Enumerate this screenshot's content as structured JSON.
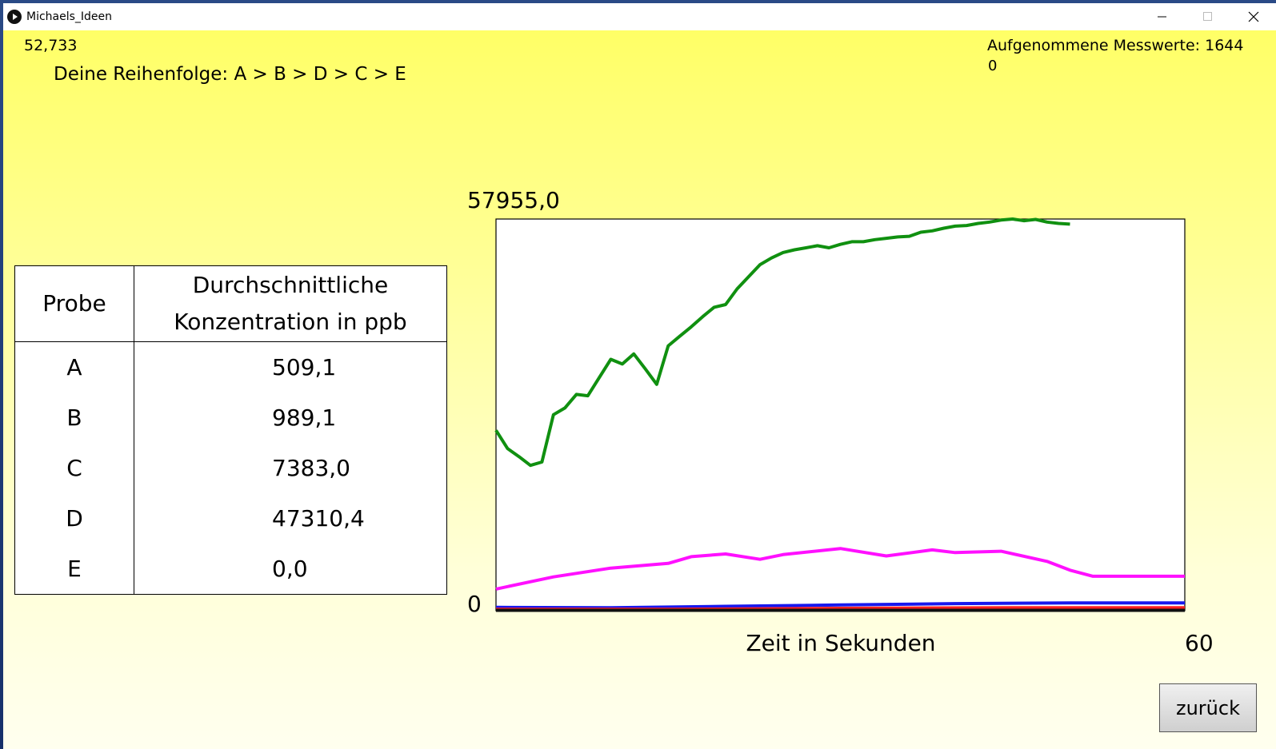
{
  "window": {
    "title": "Michaels_Ideen"
  },
  "header": {
    "timer": "52,733",
    "order": "Deine Reihenfolge: A > B > D > C > E",
    "messwerte_label": "Aufgenommene Messwerte: 1644",
    "messwerte_extra": "0"
  },
  "table": {
    "header_probe": "Probe",
    "header_conc_line1": "Durchschnittliche",
    "header_conc_line2": "Konzentration in ppb",
    "rows": [
      {
        "probe": "A",
        "value": "509,1"
      },
      {
        "probe": "B",
        "value": "989,1"
      },
      {
        "probe": "C",
        "value": "7383,0"
      },
      {
        "probe": "D",
        "value": "47310,4"
      },
      {
        "probe": "E",
        "value": "0,0"
      }
    ]
  },
  "chart_data": {
    "type": "line",
    "y_max_label": "57955,0",
    "y_min_label": "0",
    "x_max_label": "60",
    "xlabel": "Zeit in Sekunden",
    "xlim": [
      0,
      60
    ],
    "ylim": [
      0,
      57955
    ],
    "series": [
      {
        "color": "#109010",
        "points": [
          [
            0,
            26700
          ],
          [
            1,
            24000
          ],
          [
            2,
            22800
          ],
          [
            3,
            21500
          ],
          [
            4,
            22000
          ],
          [
            5,
            29000
          ],
          [
            6,
            30000
          ],
          [
            7,
            32000
          ],
          [
            8,
            31800
          ],
          [
            9,
            34500
          ],
          [
            10,
            37200
          ],
          [
            11,
            36500
          ],
          [
            12,
            38000
          ],
          [
            13,
            35800
          ],
          [
            14,
            33500
          ],
          [
            15,
            39200
          ],
          [
            16,
            40600
          ],
          [
            17,
            42000
          ],
          [
            18,
            43500
          ],
          [
            19,
            44900
          ],
          [
            20,
            45300
          ],
          [
            21,
            47600
          ],
          [
            22,
            49400
          ],
          [
            23,
            51200
          ],
          [
            24,
            52200
          ],
          [
            25,
            53000
          ],
          [
            26,
            53400
          ],
          [
            27,
            53700
          ],
          [
            28,
            54000
          ],
          [
            29,
            53700
          ],
          [
            30,
            54200
          ],
          [
            31,
            54600
          ],
          [
            32,
            54600
          ],
          [
            33,
            54900
          ],
          [
            34,
            55100
          ],
          [
            35,
            55300
          ],
          [
            36,
            55400
          ],
          [
            37,
            56000
          ],
          [
            38,
            56200
          ],
          [
            39,
            56600
          ],
          [
            40,
            56900
          ],
          [
            41,
            57000
          ],
          [
            42,
            57300
          ],
          [
            43,
            57500
          ],
          [
            44,
            57800
          ],
          [
            45,
            57950
          ],
          [
            46,
            57700
          ],
          [
            47,
            57900
          ],
          [
            48,
            57500
          ],
          [
            49,
            57300
          ],
          [
            50,
            57200
          ]
        ]
      },
      {
        "color": "#ff10ff",
        "points": [
          [
            0,
            3200
          ],
          [
            5,
            5000
          ],
          [
            10,
            6300
          ],
          [
            15,
            7000
          ],
          [
            17,
            8000
          ],
          [
            20,
            8400
          ],
          [
            23,
            7600
          ],
          [
            25,
            8300
          ],
          [
            30,
            9200
          ],
          [
            34,
            8100
          ],
          [
            38,
            9000
          ],
          [
            40,
            8600
          ],
          [
            44,
            8800
          ],
          [
            48,
            7300
          ],
          [
            50,
            6000
          ],
          [
            52,
            5100
          ],
          [
            60,
            5100
          ]
        ]
      },
      {
        "color": "#1818ee",
        "points": [
          [
            0,
            500
          ],
          [
            10,
            450
          ],
          [
            20,
            650
          ],
          [
            30,
            850
          ],
          [
            40,
            1050
          ],
          [
            50,
            1150
          ],
          [
            60,
            1150
          ]
        ]
      },
      {
        "color": "#ff2020",
        "points": [
          [
            0,
            200
          ],
          [
            15,
            200
          ],
          [
            30,
            350
          ],
          [
            45,
            450
          ],
          [
            60,
            450
          ]
        ]
      },
      {
        "color": "#111111",
        "points": [
          [
            0,
            60
          ],
          [
            60,
            60
          ]
        ]
      }
    ]
  },
  "buttons": {
    "zurueck": "zurück"
  },
  "colors": {
    "background_top": "#ffff66",
    "background_bottom": "#ffffef"
  }
}
